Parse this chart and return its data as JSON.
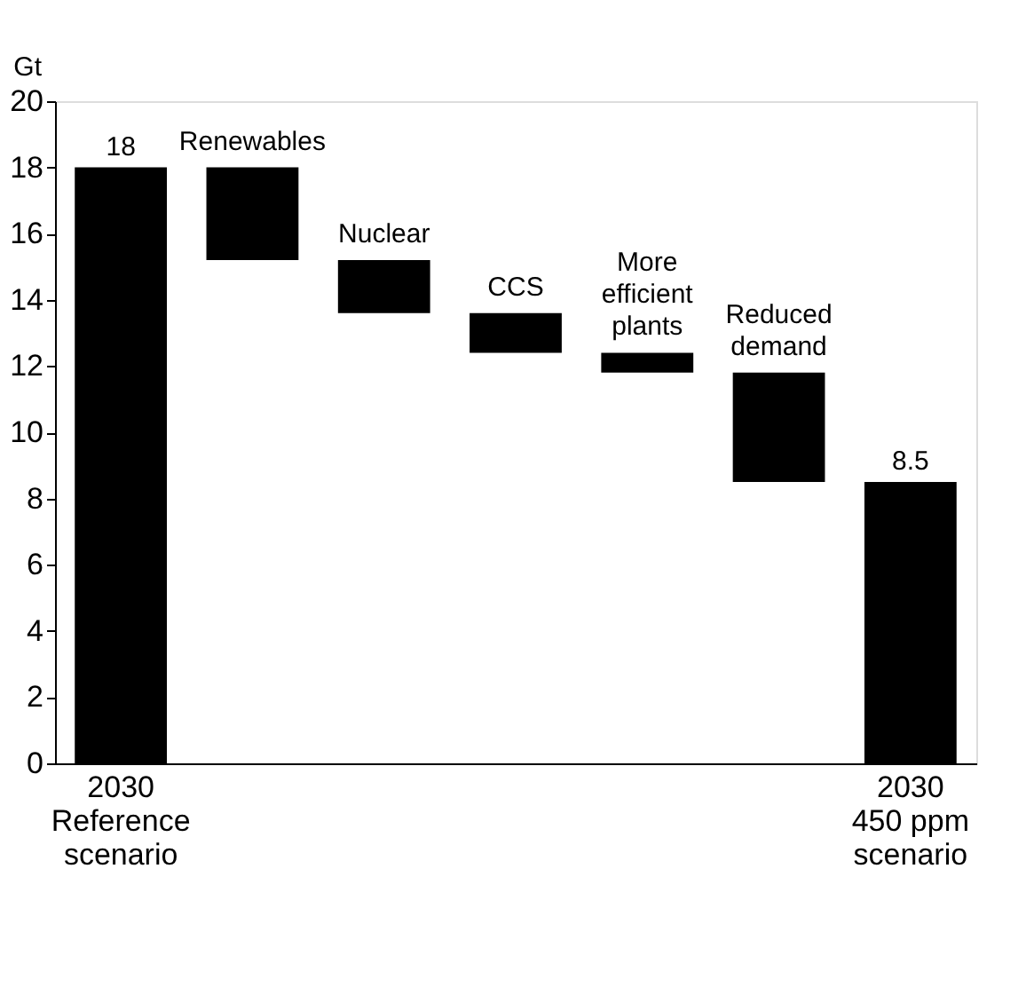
{
  "chart_data": {
    "type": "bar",
    "ylabel": "Gt",
    "categories": [
      "2030 Reference scenario",
      "Renewables",
      "Nuclear",
      "CCS",
      "More efficient plants",
      "Reduced demand",
      "2030 450 ppm scenario"
    ],
    "base": [
      0,
      15.2,
      13.6,
      12.4,
      11.8,
      8.5,
      0
    ],
    "values": [
      18,
      2.8,
      1.6,
      1.2,
      0.6,
      3.3,
      8.5
    ],
    "value_labels": [
      "18",
      null,
      null,
      null,
      null,
      null,
      "8.5"
    ],
    "color": "#000000",
    "ylim": [
      0,
      20
    ],
    "yticks": [
      0,
      2,
      4,
      6,
      8,
      10,
      12,
      14,
      16,
      18,
      20
    ],
    "grid": false
  }
}
